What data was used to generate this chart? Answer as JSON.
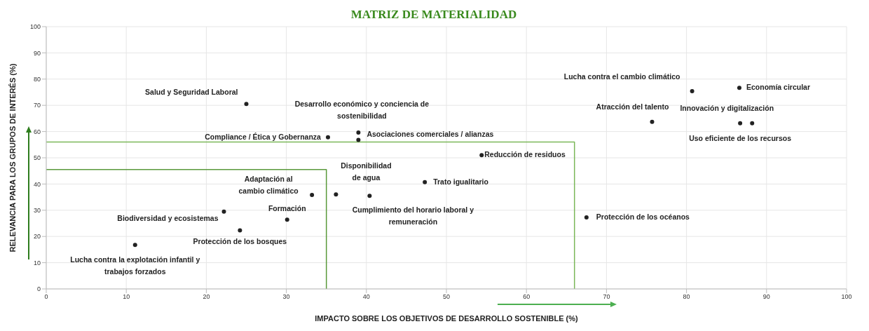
{
  "chart_data": {
    "type": "scatter",
    "title": "MATRIZ DE MATERIALIDAD",
    "xlabel": "IMPACTO SOBRE LOS OBJETIVOS DE DESARROLLO SOSTENIBLE (%)",
    "ylabel": "RELEVANCIA PARA LOS GRUPOS DE INTERÉS (%)",
    "xlim": [
      0,
      100
    ],
    "ylim": [
      0,
      100
    ],
    "xticks": [
      0,
      10,
      20,
      30,
      40,
      50,
      60,
      70,
      80,
      90,
      100
    ],
    "yticks": [
      0,
      10,
      20,
      30,
      40,
      50,
      60,
      70,
      80,
      90,
      100
    ],
    "grid": true,
    "series": [
      {
        "marker": "circle",
        "color": "#222222",
        "x": [
          25,
          39,
          39,
          35.2,
          54.4,
          36.2,
          40.4,
          33.2,
          47.3,
          30.1,
          22.2,
          24.2,
          11.1,
          80.7,
          86.6,
          75.7,
          86.7,
          88.2,
          67.5
        ],
        "values": [
          70.5,
          59.6,
          56.8,
          57.8,
          51,
          36,
          35.5,
          35.8,
          40.7,
          26.4,
          29.5,
          22.3,
          16.8,
          75.4,
          76.7,
          63.7,
          63.2,
          63.2,
          27.3
        ]
      },
      {
        "type": "line",
        "color": "#5b9a3c",
        "x": [
          0,
          35,
          35
        ],
        "values": [
          45.5,
          45.5,
          0
        ]
      },
      {
        "type": "line",
        "color": "#7cb85a",
        "x": [
          0,
          66,
          66
        ],
        "values": [
          56,
          56,
          0
        ]
      }
    ],
    "annotations": [
      {
        "text": "Salud y Seguridad Laboral",
        "x": 25,
        "y": 70.5
      },
      {
        "text": "Desarrollo económico y conciencia de sostenibilidad",
        "x": 39,
        "y": 59.6
      },
      {
        "text": "Asociaciones comerciales / alianzas",
        "x": 39,
        "y": 56.8
      },
      {
        "text": "Compliance / Ética y Gobernanza",
        "x": 35.2,
        "y": 57.8
      },
      {
        "text": "Reducción de residuos",
        "x": 54.4,
        "y": 51
      },
      {
        "text": "Disponibilidad de agua",
        "x": 36.2,
        "y": 36
      },
      {
        "text": "Cumplimiento del horario laboral y remuneración",
        "x": 40.4,
        "y": 35.5
      },
      {
        "text": "Adaptación al cambio climático",
        "x": 33.2,
        "y": 35.8
      },
      {
        "text": "Trato igualitario",
        "x": 47.3,
        "y": 40.7
      },
      {
        "text": "Formación",
        "x": 30.1,
        "y": 26.4
      },
      {
        "text": "Biodiversidad y ecosistemas",
        "x": 22.2,
        "y": 29.5
      },
      {
        "text": "Protección de los bosques",
        "x": 24.2,
        "y": 22.3
      },
      {
        "text": "Lucha contra la explotación infantil y trabajos forzados",
        "x": 11.1,
        "y": 16.8
      },
      {
        "text": "Lucha contra el cambio climático",
        "x": 80.7,
        "y": 75.4
      },
      {
        "text": "Economía circular",
        "x": 86.6,
        "y": 76.7
      },
      {
        "text": "Atracción del talento",
        "x": 75.7,
        "y": 63.7
      },
      {
        "text": "Uso eficiente de los recursos",
        "x": 86.7,
        "y": 63.2
      },
      {
        "text": "Innovación y digitalización",
        "x": 88.2,
        "y": 63.2
      },
      {
        "text": "Protección de los océanos",
        "x": 67.5,
        "y": 27.3
      }
    ]
  }
}
